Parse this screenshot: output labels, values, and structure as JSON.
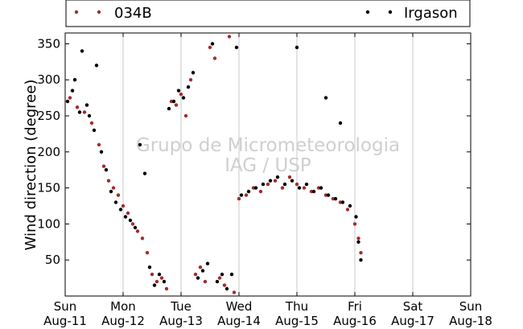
{
  "chart_data": {
    "type": "scatter",
    "ylabel": "Wind direction (degree)",
    "xlabel": "",
    "ylim": [
      0,
      365
    ],
    "yticks": [
      50,
      100,
      150,
      200,
      250,
      300,
      350
    ],
    "xlim": [
      "2013-08-11",
      "2013-08-18"
    ],
    "xticks": [
      {
        "day": "Sun",
        "date": "Aug-11"
      },
      {
        "day": "Mon",
        "date": "Aug-12"
      },
      {
        "day": "Tue",
        "date": "Aug-13"
      },
      {
        "day": "Wed",
        "date": "Aug-14"
      },
      {
        "day": "Thu",
        "date": "Aug-15"
      },
      {
        "day": "Fri",
        "date": "Aug-16"
      },
      {
        "day": "Sat",
        "date": "Aug-17"
      },
      {
        "day": "Sun",
        "date": "Aug-18"
      }
    ],
    "grid": "vertical",
    "legend_placement": "top-outside",
    "watermark": [
      "Grupo de Micrometeorologia",
      "IAG / USP"
    ],
    "series": [
      {
        "name": "034B",
        "color": "#a52a2a",
        "points": [
          [
            "2013-08-11T02:00",
            275
          ],
          [
            "2013-08-11T05:00",
            262
          ],
          [
            "2013-08-11T08:00",
            255
          ],
          [
            "2013-08-11T11:00",
            240
          ],
          [
            "2013-08-11T14:00",
            210
          ],
          [
            "2013-08-11T16:00",
            180
          ],
          [
            "2013-08-11T18:00",
            160
          ],
          [
            "2013-08-11T20:00",
            150
          ],
          [
            "2013-08-11T22:00",
            140
          ],
          [
            "2013-08-12T00:00",
            125
          ],
          [
            "2013-08-12T02:00",
            115
          ],
          [
            "2013-08-12T04:00",
            100
          ],
          [
            "2013-08-12T06:00",
            90
          ],
          [
            "2013-08-12T08:00",
            80
          ],
          [
            "2013-08-12T10:00",
            60
          ],
          [
            "2013-08-12T12:00",
            30
          ],
          [
            "2013-08-12T14:00",
            20
          ],
          [
            "2013-08-12T16:00",
            25
          ],
          [
            "2013-08-12T18:00",
            10
          ],
          [
            "2013-08-12T20:00",
            270
          ],
          [
            "2013-08-12T22:00",
            265
          ],
          [
            "2013-08-13T00:00",
            280
          ],
          [
            "2013-08-13T02:00",
            250
          ],
          [
            "2013-08-13T04:00",
            300
          ],
          [
            "2013-08-13T06:00",
            30
          ],
          [
            "2013-08-13T08:00",
            40
          ],
          [
            "2013-08-13T10:00",
            20
          ],
          [
            "2013-08-13T12:00",
            345
          ],
          [
            "2013-08-13T14:00",
            330
          ],
          [
            "2013-08-13T16:00",
            25
          ],
          [
            "2013-08-13T18:00",
            15
          ],
          [
            "2013-08-13T20:00",
            360
          ],
          [
            "2013-08-13T22:00",
            5
          ],
          [
            "2013-08-14T00:00",
            135
          ],
          [
            "2013-08-14T03:00",
            140
          ],
          [
            "2013-08-14T06:00",
            150
          ],
          [
            "2013-08-14T09:00",
            145
          ],
          [
            "2013-08-14T12:00",
            155
          ],
          [
            "2013-08-14T15:00",
            160
          ],
          [
            "2013-08-14T18:00",
            150
          ],
          [
            "2013-08-14T21:00",
            165
          ],
          [
            "2013-08-15T00:00",
            155
          ],
          [
            "2013-08-15T03:00",
            150
          ],
          [
            "2013-08-15T06:00",
            145
          ],
          [
            "2013-08-15T09:00",
            150
          ],
          [
            "2013-08-15T12:00",
            140
          ],
          [
            "2013-08-15T15:00",
            135
          ],
          [
            "2013-08-15T18:00",
            130
          ],
          [
            "2013-08-15T21:00",
            120
          ],
          [
            "2013-08-16T00:00",
            100
          ],
          [
            "2013-08-16T01:30",
            80
          ],
          [
            "2013-08-16T02:30",
            60
          ]
        ]
      },
      {
        "name": "Irgason",
        "color": "#000000",
        "points": [
          [
            "2013-08-11T01:00",
            270
          ],
          [
            "2013-08-11T03:00",
            285
          ],
          [
            "2013-08-11T04:00",
            300
          ],
          [
            "2013-08-11T06:00",
            255
          ],
          [
            "2013-08-11T07:00",
            340
          ],
          [
            "2013-08-11T09:00",
            265
          ],
          [
            "2013-08-11T10:00",
            250
          ],
          [
            "2013-08-11T12:00",
            230
          ],
          [
            "2013-08-11T13:00",
            320
          ],
          [
            "2013-08-11T15:00",
            200
          ],
          [
            "2013-08-11T17:00",
            175
          ],
          [
            "2013-08-11T19:00",
            145
          ],
          [
            "2013-08-11T21:00",
            130
          ],
          [
            "2013-08-11T23:00",
            120
          ],
          [
            "2013-08-12T01:00",
            110
          ],
          [
            "2013-08-12T03:00",
            105
          ],
          [
            "2013-08-12T05:00",
            95
          ],
          [
            "2013-08-12T07:00",
            210
          ],
          [
            "2013-08-12T09:00",
            170
          ],
          [
            "2013-08-12T11:00",
            40
          ],
          [
            "2013-08-12T13:00",
            15
          ],
          [
            "2013-08-12T15:00",
            30
          ],
          [
            "2013-08-12T17:00",
            20
          ],
          [
            "2013-08-12T19:00",
            260
          ],
          [
            "2013-08-12T21:00",
            270
          ],
          [
            "2013-08-12T23:00",
            285
          ],
          [
            "2013-08-13T01:00",
            275
          ],
          [
            "2013-08-13T03:00",
            290
          ],
          [
            "2013-08-13T05:00",
            310
          ],
          [
            "2013-08-13T07:00",
            25
          ],
          [
            "2013-08-13T09:00",
            35
          ],
          [
            "2013-08-13T11:00",
            45
          ],
          [
            "2013-08-13T13:00",
            350
          ],
          [
            "2013-08-13T15:00",
            20
          ],
          [
            "2013-08-13T17:00",
            30
          ],
          [
            "2013-08-13T19:00",
            10
          ],
          [
            "2013-08-13T21:00",
            30
          ],
          [
            "2013-08-13T23:00",
            345
          ],
          [
            "2013-08-14T01:00",
            140
          ],
          [
            "2013-08-14T04:00",
            145
          ],
          [
            "2013-08-14T07:00",
            150
          ],
          [
            "2013-08-14T10:00",
            155
          ],
          [
            "2013-08-14T13:00",
            160
          ],
          [
            "2013-08-14T16:00",
            165
          ],
          [
            "2013-08-14T19:00",
            155
          ],
          [
            "2013-08-14T22:00",
            160
          ],
          [
            "2013-08-15T01:00",
            150
          ],
          [
            "2013-08-15T04:00",
            155
          ],
          [
            "2013-08-15T07:00",
            145
          ],
          [
            "2013-08-15T10:00",
            150
          ],
          [
            "2013-08-15T13:00",
            140
          ],
          [
            "2013-08-15T16:00",
            135
          ],
          [
            "2013-08-15T19:00",
            130
          ],
          [
            "2013-08-15T22:00",
            125
          ],
          [
            "2013-08-16T00:30",
            110
          ],
          [
            "2013-08-16T01:30",
            75
          ],
          [
            "2013-08-16T02:30",
            50
          ],
          [
            "2013-08-15T00:00",
            345
          ],
          [
            "2013-08-15T12:00",
            275
          ],
          [
            "2013-08-15T18:00",
            240
          ]
        ]
      }
    ]
  }
}
